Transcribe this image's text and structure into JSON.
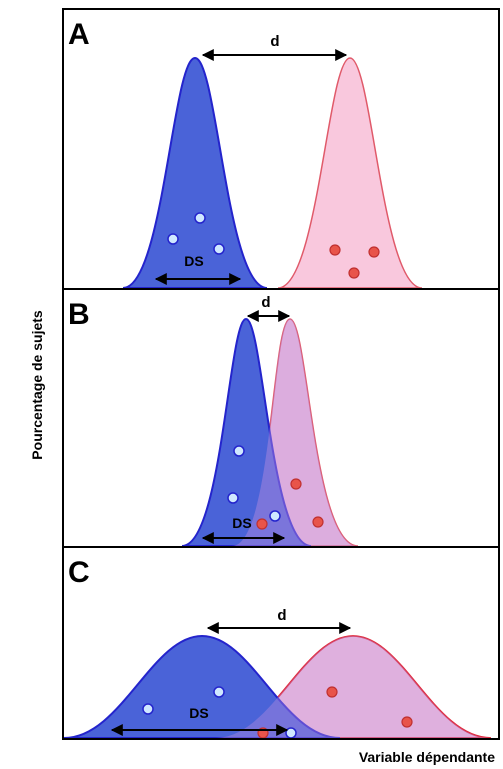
{
  "y_axis_label": "Pourcentage de sujets",
  "x_axis_label": "Variable dépendante",
  "colors": {
    "group1_stroke": "#2424cc",
    "group1_fill": "#4a63d8",
    "group2_stroke": "#e05a6a",
    "group2_fill": "#f9c8dd",
    "point1": "#cfe8ff",
    "point2": "#e8544a"
  },
  "panels": [
    {
      "letter": "A",
      "d_label": "d",
      "ds_label": "DS"
    },
    {
      "letter": "B",
      "d_label": "d",
      "ds_label": "DS"
    },
    {
      "letter": "C",
      "d_label": "d",
      "ds_label": "DS"
    }
  ]
}
